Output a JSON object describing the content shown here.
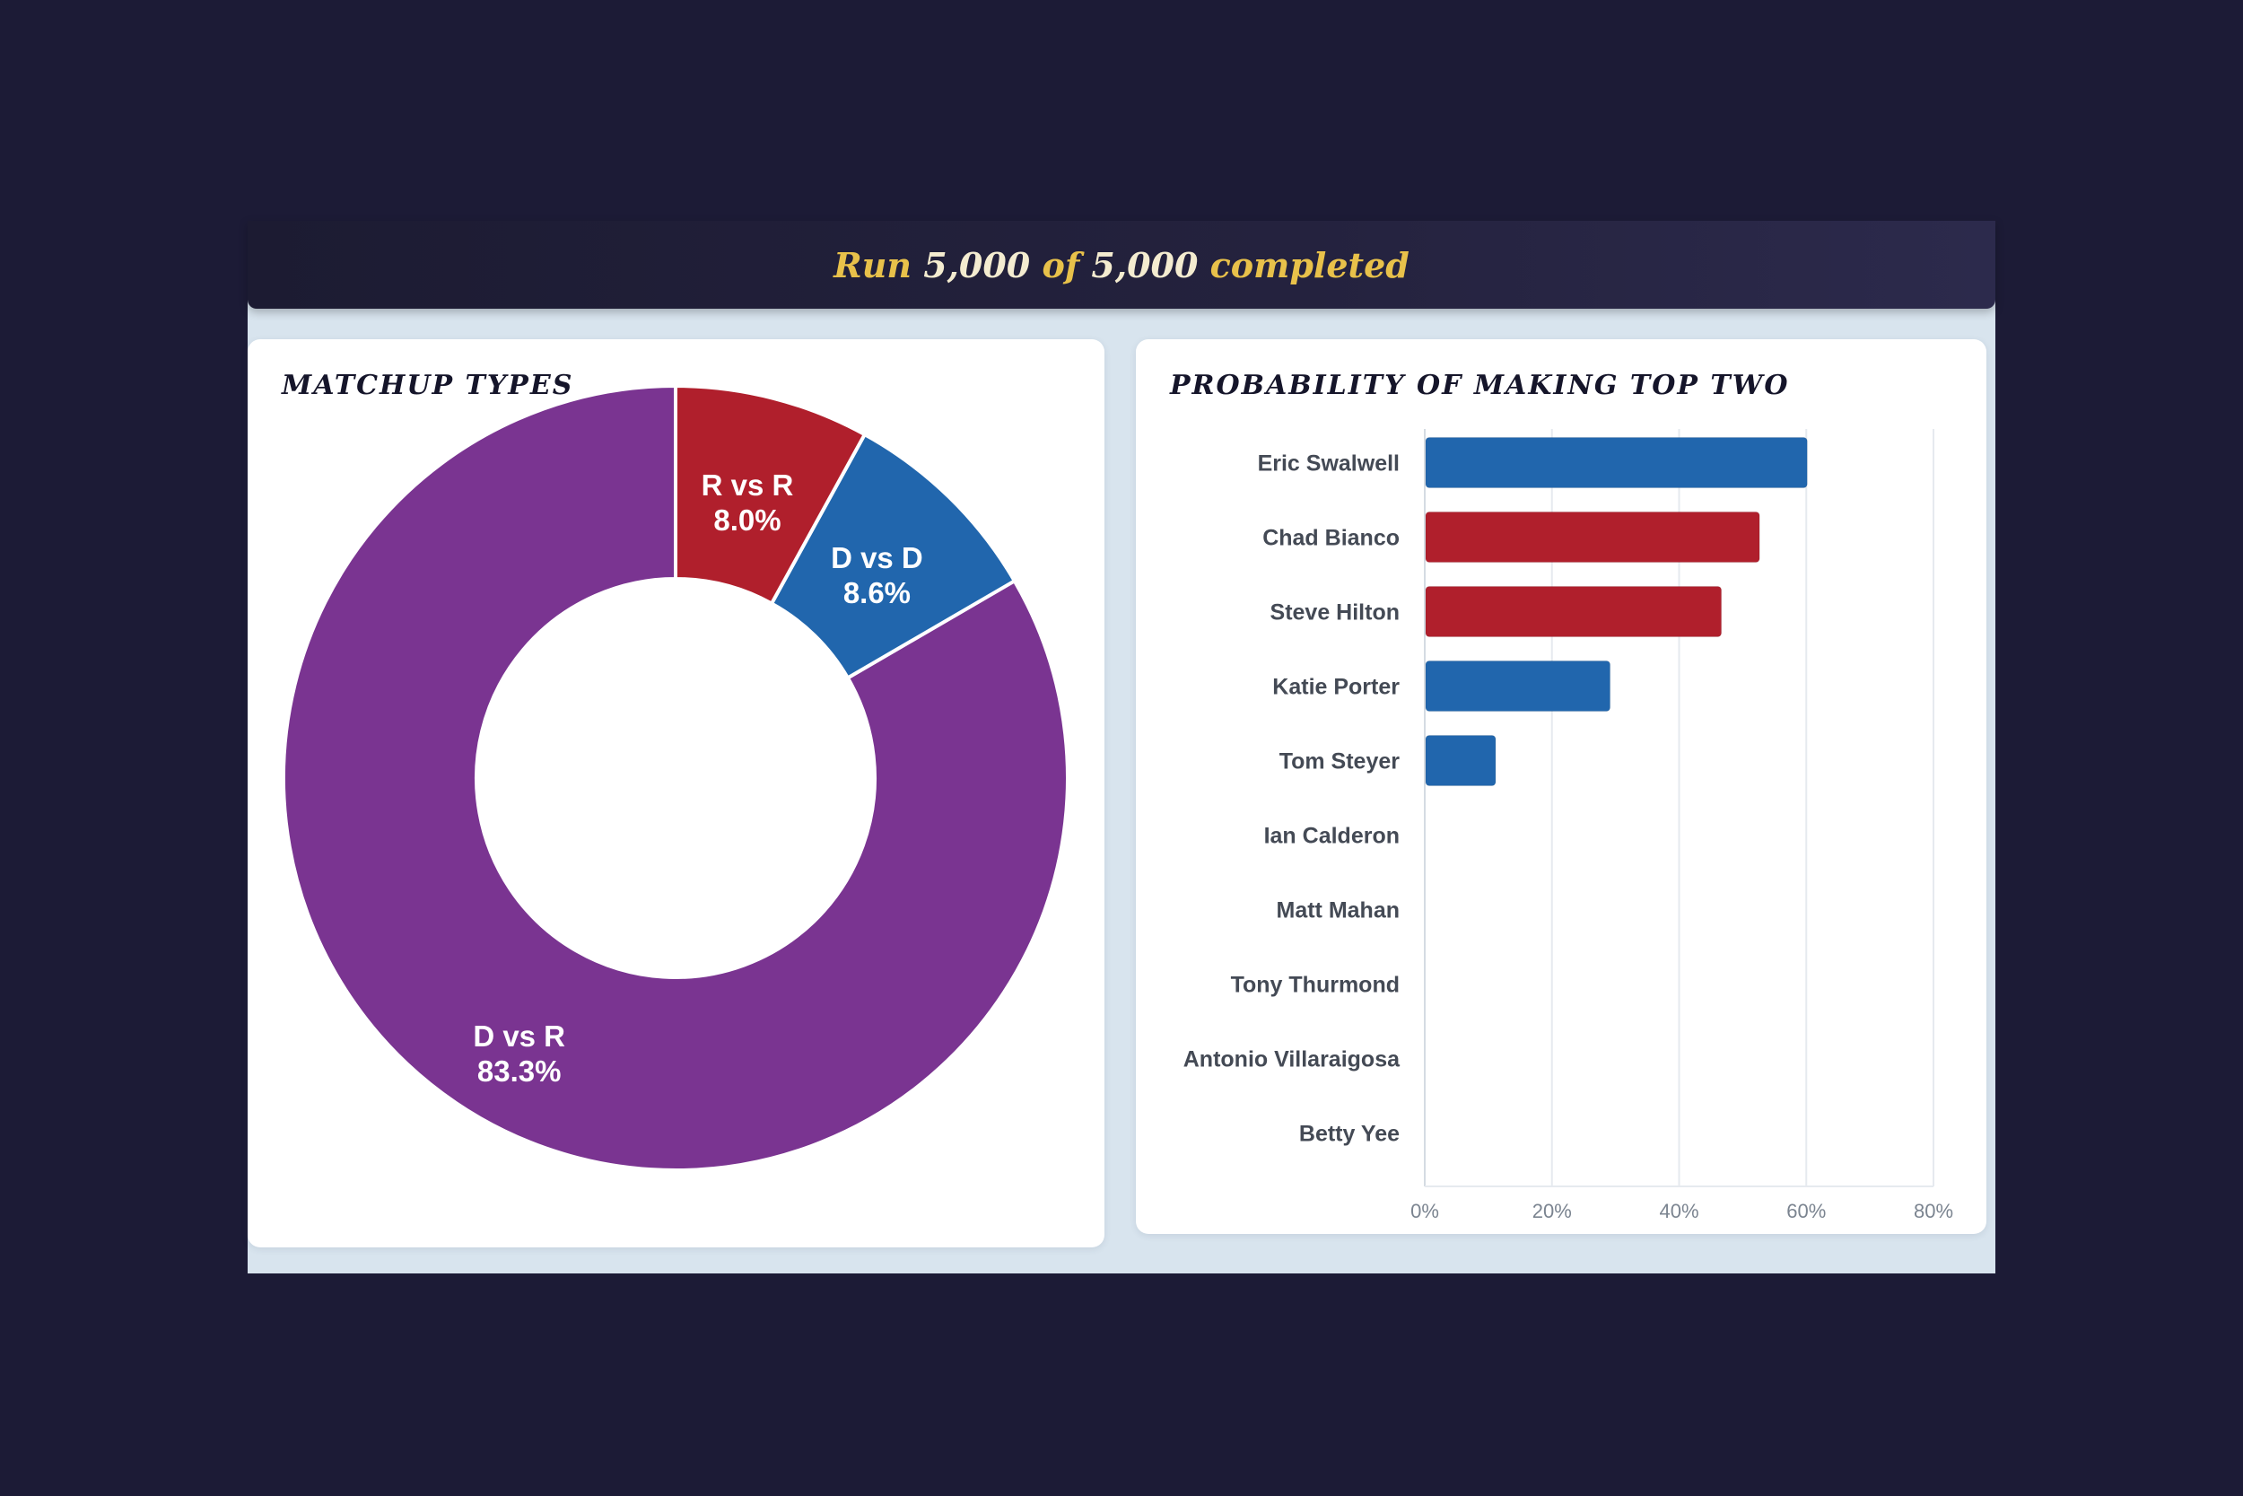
{
  "status": {
    "run_word": "Run",
    "run_current": "5,000",
    "of_word": "of",
    "run_total": "5,000",
    "completed_word": "completed"
  },
  "chart_data": [
    {
      "type": "pie",
      "title": "MATCHUP TYPES",
      "donut": true,
      "slices": [
        {
          "label": "D vs R",
          "value": 83.3,
          "value_label": "83.3%",
          "color": "#7a3491"
        },
        {
          "label": "D vs D",
          "value": 8.6,
          "value_label": "8.6%",
          "color": "#2166ad"
        },
        {
          "label": "R vs R",
          "value": 8.0,
          "value_label": "8.0%",
          "color": "#b01f2c"
        }
      ]
    },
    {
      "type": "bar",
      "orientation": "horizontal",
      "title": "PROBABILITY OF MAKING TOP TWO",
      "categories": [
        "Eric Swalwell",
        "Chad Bianco",
        "Steve Hilton",
        "Katie Porter",
        "Tom Steyer",
        "Ian Calderon",
        "Matt Mahan",
        "Tony Thurmond",
        "Antonio Villaraigosa",
        "Betty Yee"
      ],
      "values": [
        60,
        52.5,
        46.5,
        29,
        11,
        0,
        0,
        0,
        0,
        0
      ],
      "party_colors": [
        "#2166ad",
        "#b01f2c",
        "#b01f2c",
        "#2166ad",
        "#2166ad",
        "#2166ad",
        "#2166ad",
        "#2166ad",
        "#2166ad",
        "#2166ad"
      ],
      "xlim": [
        0,
        80
      ],
      "x_ticks": [
        0,
        20,
        40,
        60,
        80
      ],
      "x_tick_labels": [
        "0%",
        "20%",
        "40%",
        "60%",
        "80%"
      ],
      "grid": true
    }
  ]
}
